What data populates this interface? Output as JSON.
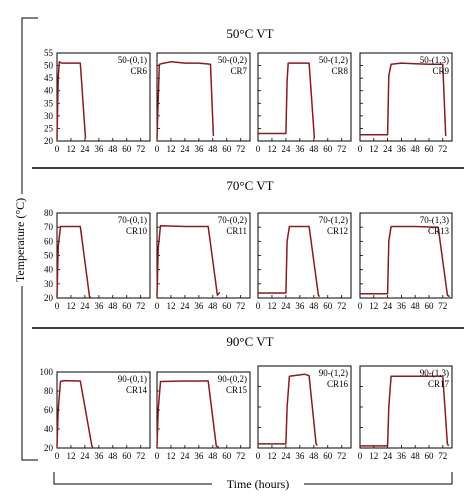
{
  "y_axis_label": "Temperature (°C)",
  "x_axis_label": "Time (hours)",
  "line_color": "#8b1a1a",
  "chart_data": [
    {
      "type": "line",
      "title": "50°C VT",
      "ylim": [
        20,
        55
      ],
      "yticks": [
        20,
        25,
        30,
        35,
        40,
        45,
        50,
        55
      ],
      "xlim": [
        0,
        80
      ],
      "xticks": [
        0,
        12,
        24,
        36,
        48,
        60,
        72
      ],
      "panels": [
        {
          "label": "50-(0,1)",
          "cr": "CR6",
          "series": [
            {
              "x": [
                0,
                1,
                2,
                4,
                20,
                24.5
              ],
              "y": [
                21,
                45,
                51.5,
                51,
                51,
                21
              ]
            }
          ]
        },
        {
          "label": "50-(0,2)",
          "cr": "CR7",
          "series": [
            {
              "x": [
                0,
                2,
                6,
                12,
                24,
                36,
                46,
                48.5
              ],
              "y": [
                21,
                50.5,
                51,
                51.5,
                51,
                51,
                50.5,
                22
              ]
            }
          ]
        },
        {
          "label": "50-(1,2)",
          "cr": "CR8",
          "series": [
            {
              "x": [
                0,
                24,
                25,
                26,
                44,
                48.5
              ],
              "y": [
                23,
                23,
                44,
                51,
                51,
                21
              ]
            }
          ]
        },
        {
          "label": "50-(1,3)",
          "cr": "CR9",
          "series": [
            {
              "x": [
                0,
                24,
                25,
                27,
                36,
                48,
                60,
                72,
                74.5
              ],
              "y": [
                22.5,
                22.5,
                46,
                50.5,
                51,
                50.7,
                50.5,
                50.5,
                22
              ]
            }
          ]
        }
      ]
    },
    {
      "type": "line",
      "title": "70°C VT",
      "ylim": [
        20,
        80
      ],
      "yticks": [
        20,
        30,
        40,
        50,
        60,
        70,
        80
      ],
      "xlim": [
        0,
        80
      ],
      "xticks": [
        0,
        12,
        24,
        36,
        48,
        60,
        72
      ],
      "panels": [
        {
          "label": "70-(0,1)",
          "cr": "CR10",
          "series": [
            {
              "x": [
                0,
                1,
                3,
                20,
                28,
                29
              ],
              "y": [
                21,
                56,
                70.5,
                70.5,
                21,
                20.5
              ]
            }
          ]
        },
        {
          "label": "70-(0,2)",
          "cr": "CR11",
          "series": [
            {
              "x": [
                0,
                1,
                3,
                24,
                44,
                52,
                54
              ],
              "y": [
                21,
                55,
                71,
                70.5,
                70.5,
                22,
                24
              ]
            }
          ]
        },
        {
          "label": "70-(1,2)",
          "cr": "CR12",
          "series": [
            {
              "x": [
                0,
                24,
                25,
                27,
                44,
                52,
                53
              ],
              "y": [
                23.5,
                23.5,
                60,
                70.5,
                70.5,
                22,
                21
              ]
            }
          ]
        },
        {
          "label": "70-(1,3)",
          "cr": "CR13",
          "series": [
            {
              "x": [
                0,
                24,
                25,
                27,
                48,
                68,
                76,
                78
              ],
              "y": [
                23,
                23,
                60,
                70.5,
                70.5,
                70,
                22,
                21
              ]
            }
          ]
        }
      ]
    },
    {
      "type": "line",
      "title": "90°C VT",
      "ylim": [
        20,
        100
      ],
      "yticks": [
        20,
        40,
        60,
        80,
        100
      ],
      "xlim": [
        0,
        80
      ],
      "xticks": [
        0,
        12,
        24,
        36,
        48,
        60,
        72
      ],
      "panels": [
        {
          "label": "90-(0,1)",
          "cr": "CR14",
          "series": [
            {
              "x": [
                0,
                1,
                3,
                6,
                20,
                30,
                31
              ],
              "y": [
                22,
                60,
                90,
                91,
                90.5,
                22,
                21
              ]
            }
          ]
        },
        {
          "label": "90-(0,2)",
          "cr": "CR15",
          "series": [
            {
              "x": [
                0,
                1,
                3,
                24,
                44,
                51,
                53
              ],
              "y": [
                22,
                60,
                90,
                90.5,
                90.5,
                22,
                21
              ]
            }
          ]
        },
        {
          "label": "90-(1,2)",
          "cr": "CR16",
          "series": [
            {
              "x": [
                0,
                24,
                25,
                27,
                40,
                44,
                50,
                51
              ],
              "y": [
                24,
                24,
                60,
                90,
                92,
                90.5,
                24,
                22.5
              ]
            }
          ]
        },
        {
          "label": "90-(1,3)",
          "cr": "CR17",
          "series": [
            {
              "x": [
                0,
                24,
                25,
                27,
                48,
                72,
                76,
                77
              ],
              "y": [
                22,
                22,
                60,
                90,
                90,
                90,
                24,
                22
              ]
            }
          ]
        }
      ]
    }
  ]
}
